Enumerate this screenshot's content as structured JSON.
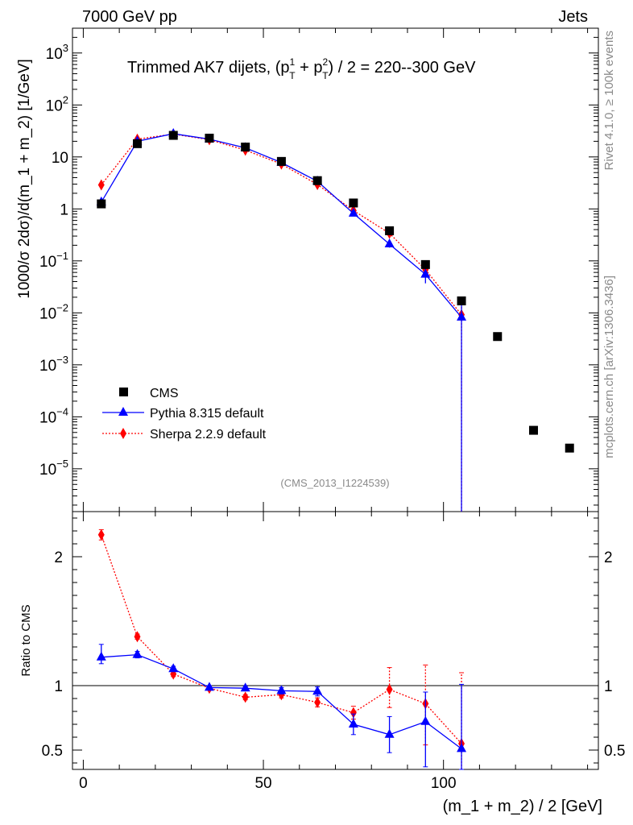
{
  "header": {
    "left": "7000 GeV pp",
    "right": "Jets"
  },
  "side_labels": {
    "rivet": "Rivet 4.1.0, ≥ 100k events",
    "mcplots": "mcplots.cern.ch [arXiv:1306.3436]"
  },
  "main_title": {
    "prefix": "Trimmed AK7 dijets, (p",
    "mid1": " + p",
    "suffix": ") / 2 = 220--300 GeV",
    "sup1": "1",
    "sup2": "2",
    "sub": "T"
  },
  "watermark": "(CMS_2013_I1224539)",
  "colors": {
    "cms": "#000000",
    "pythia": "#0000ff",
    "sherpa": "#ff0000"
  },
  "chart_data": [
    {
      "type": "scatter",
      "yscale": "log",
      "ylabel": "1000/σ   2dσ)/d(m_1 + m_2) [1/GeV]",
      "xlim": [
        -3,
        143
      ],
      "ylim": [
        1.5e-06,
        3000
      ],
      "ytick_labels": [
        {
          "base": "10",
          "exp": "3",
          "value": 1000
        },
        {
          "base": "10",
          "exp": "2",
          "value": 100
        },
        {
          "base": "",
          "exp": "",
          "text": "10",
          "value": 10
        },
        {
          "base": "",
          "exp": "",
          "text": "1",
          "value": 1
        },
        {
          "base": "10",
          "exp": "−1",
          "value": 0.1
        },
        {
          "base": "10",
          "exp": "−2",
          "value": 0.01
        },
        {
          "base": "10",
          "exp": "−3",
          "value": 0.001
        },
        {
          "base": "10",
          "exp": "−4",
          "value": 0.0001
        },
        {
          "base": "10",
          "exp": "−5",
          "value": 1e-05
        }
      ],
      "legend": [
        "CMS",
        "Pythia 8.315 default",
        "Sherpa 2.2.9 default"
      ],
      "legend_position": "lower-left",
      "series": [
        {
          "name": "CMS",
          "marker": "square",
          "x": [
            5,
            15,
            25,
            35,
            45,
            55,
            65,
            75,
            85,
            95,
            105,
            115,
            125,
            135
          ],
          "y": [
            1.25,
            18,
            26,
            23,
            15.5,
            8.2,
            3.5,
            1.3,
            0.38,
            0.085,
            0.017,
            0.0035,
            5.5e-05,
            2.5e-05
          ]
        },
        {
          "name": "Pythia 8.315 default",
          "marker": "triangle",
          "line": "solid",
          "x": [
            5,
            15,
            25,
            35,
            45,
            55,
            65,
            75,
            85,
            95,
            105
          ],
          "y": [
            1.35,
            20,
            28,
            22,
            15,
            7.8,
            3.4,
            0.82,
            0.21,
            0.055,
            0.0082
          ],
          "err_lo": [
            0.05,
            0.5,
            0.5,
            0.5,
            0.3,
            0.2,
            0.1,
            0.05,
            0.03,
            0.018,
            0.0082
          ],
          "err_hi": [
            0.05,
            0.5,
            0.5,
            0.5,
            0.3,
            0.2,
            0.1,
            0.05,
            0.03,
            0.018,
            0.006
          ]
        },
        {
          "name": "Sherpa 2.2.9 default",
          "marker": "diamond",
          "line": "dotted",
          "x": [
            5,
            15,
            25,
            35,
            45,
            55,
            65,
            75,
            85,
            95,
            105
          ],
          "y": [
            2.9,
            22,
            27.5,
            21.5,
            13.5,
            7.3,
            2.95,
            0.93,
            0.34,
            0.068,
            0.0092
          ],
          "err_lo": [
            0.1,
            0.5,
            0.5,
            0.4,
            0.3,
            0.2,
            0.1,
            0.05,
            0.05,
            0.02,
            0.0092
          ],
          "err_hi": [
            0.1,
            0.5,
            0.5,
            0.4,
            0.3,
            0.2,
            0.1,
            0.05,
            0.05,
            0.02,
            0.005
          ]
        }
      ]
    },
    {
      "type": "line",
      "ylabel": "Ratio to CMS",
      "xlabel": "(m_1 + m_2) / 2 [GeV]",
      "xlim": [
        -3,
        143
      ],
      "ylim": [
        0.35,
        2.35
      ],
      "xticks": [
        0,
        50,
        100
      ],
      "xtick_labels": [
        "0",
        "50",
        "100"
      ],
      "yticks": [
        0.5,
        1,
        2
      ],
      "ytick_labels": [
        "0.5",
        "1",
        "2"
      ],
      "reference_line": 1,
      "series": [
        {
          "name": "Pythia 8.315 default",
          "x": [
            5,
            15,
            25,
            35,
            45,
            55,
            65,
            75,
            85,
            95,
            105
          ],
          "y": [
            1.22,
            1.24,
            1.13,
            0.985,
            0.98,
            0.96,
            0.955,
            0.7,
            0.62,
            0.72,
            0.51
          ],
          "err_lo": [
            0.05,
            0.025,
            0.02,
            0.015,
            0.015,
            0.025,
            0.035,
            0.08,
            0.14,
            0.35,
            0.2
          ],
          "err_hi": [
            0.1,
            0.025,
            0.02,
            0.015,
            0.015,
            0.025,
            0.035,
            0.08,
            0.14,
            0.23,
            0.5
          ]
        },
        {
          "name": "Sherpa 2.2.9 default",
          "x": [
            5,
            15,
            25,
            35,
            45,
            55,
            65,
            75,
            85,
            95,
            105
          ],
          "y": [
            2.17,
            1.38,
            1.09,
            0.98,
            0.91,
            0.93,
            0.87,
            0.79,
            0.97,
            0.86,
            0.55
          ],
          "err_lo": [
            0.04,
            0.02,
            0.02,
            0.015,
            0.02,
            0.025,
            0.035,
            0.05,
            0.14,
            0.32,
            0.2
          ],
          "err_hi": [
            0.04,
            0.02,
            0.02,
            0.015,
            0.02,
            0.025,
            0.035,
            0.05,
            0.17,
            0.3,
            0.55
          ]
        }
      ]
    }
  ]
}
